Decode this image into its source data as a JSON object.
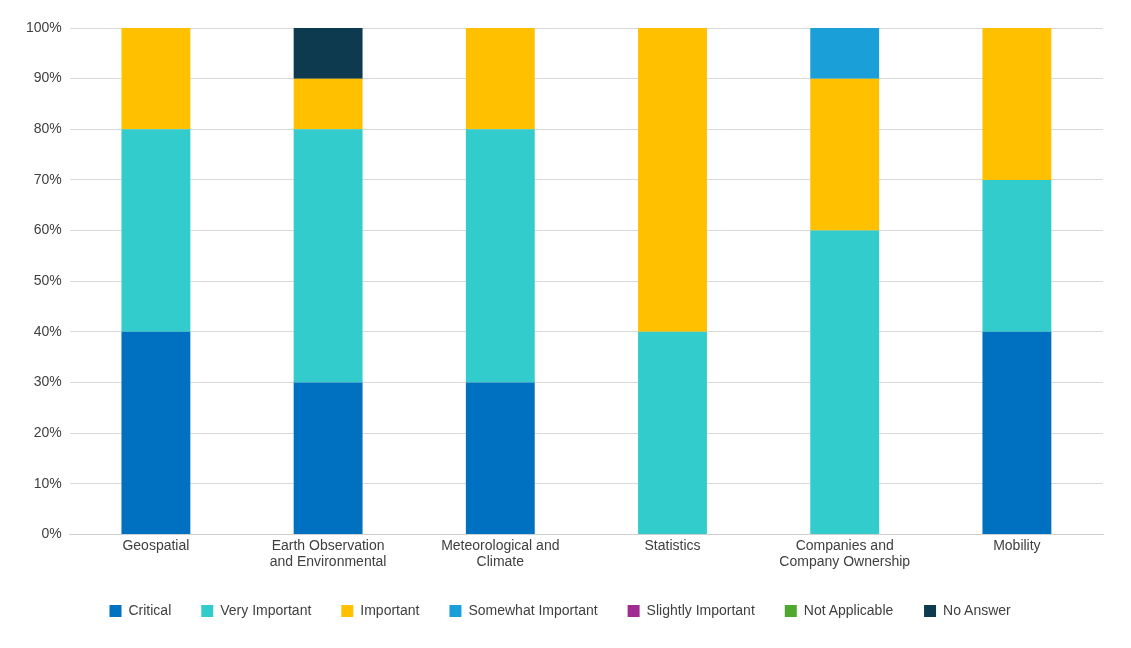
{
  "chart_data": {
    "type": "bar",
    "stacked": true,
    "categories": [
      "Geospatial",
      "Earth Observation and Environmental",
      "Meteorological and Climate",
      "Statistics",
      "Companies and Company Ownership",
      "Mobility"
    ],
    "series": [
      {
        "name": "Critical",
        "color": "#0070c0",
        "values": [
          40,
          30,
          30,
          0,
          0,
          40
        ]
      },
      {
        "name": "Very Important",
        "color": "#33cccc",
        "values": [
          40,
          50,
          50,
          40,
          60,
          30
        ]
      },
      {
        "name": "Important",
        "color": "#ffc000",
        "values": [
          20,
          10,
          20,
          60,
          30,
          30
        ]
      },
      {
        "name": "Somewhat Important",
        "color": "#1a9fd9",
        "values": [
          0,
          0,
          0,
          0,
          10,
          0
        ]
      },
      {
        "name": "Slightly Important",
        "color": "#a02b93",
        "values": [
          0,
          0,
          0,
          0,
          0,
          0
        ]
      },
      {
        "name": "Not Applicable",
        "color": "#4ea72e",
        "values": [
          0,
          0,
          0,
          0,
          0,
          0
        ]
      },
      {
        "name": "No Answer",
        "color": "#0e3a50",
        "values": [
          0,
          10,
          0,
          0,
          0,
          0
        ]
      }
    ],
    "ylim": [
      0,
      100
    ],
    "yticks": [
      {
        "value": 0,
        "label": "0%"
      },
      {
        "value": 10,
        "label": "10%"
      },
      {
        "value": 20,
        "label": "20%"
      },
      {
        "value": 30,
        "label": "30%"
      },
      {
        "value": 40,
        "label": "40%"
      },
      {
        "value": 50,
        "label": "50%"
      },
      {
        "value": 60,
        "label": "60%"
      },
      {
        "value": 70,
        "label": "70%"
      },
      {
        "value": 80,
        "label": "80%"
      },
      {
        "value": 90,
        "label": "90%"
      },
      {
        "value": 100,
        "label": "100%"
      }
    ],
    "grid": "y",
    "legend": "bottom"
  }
}
